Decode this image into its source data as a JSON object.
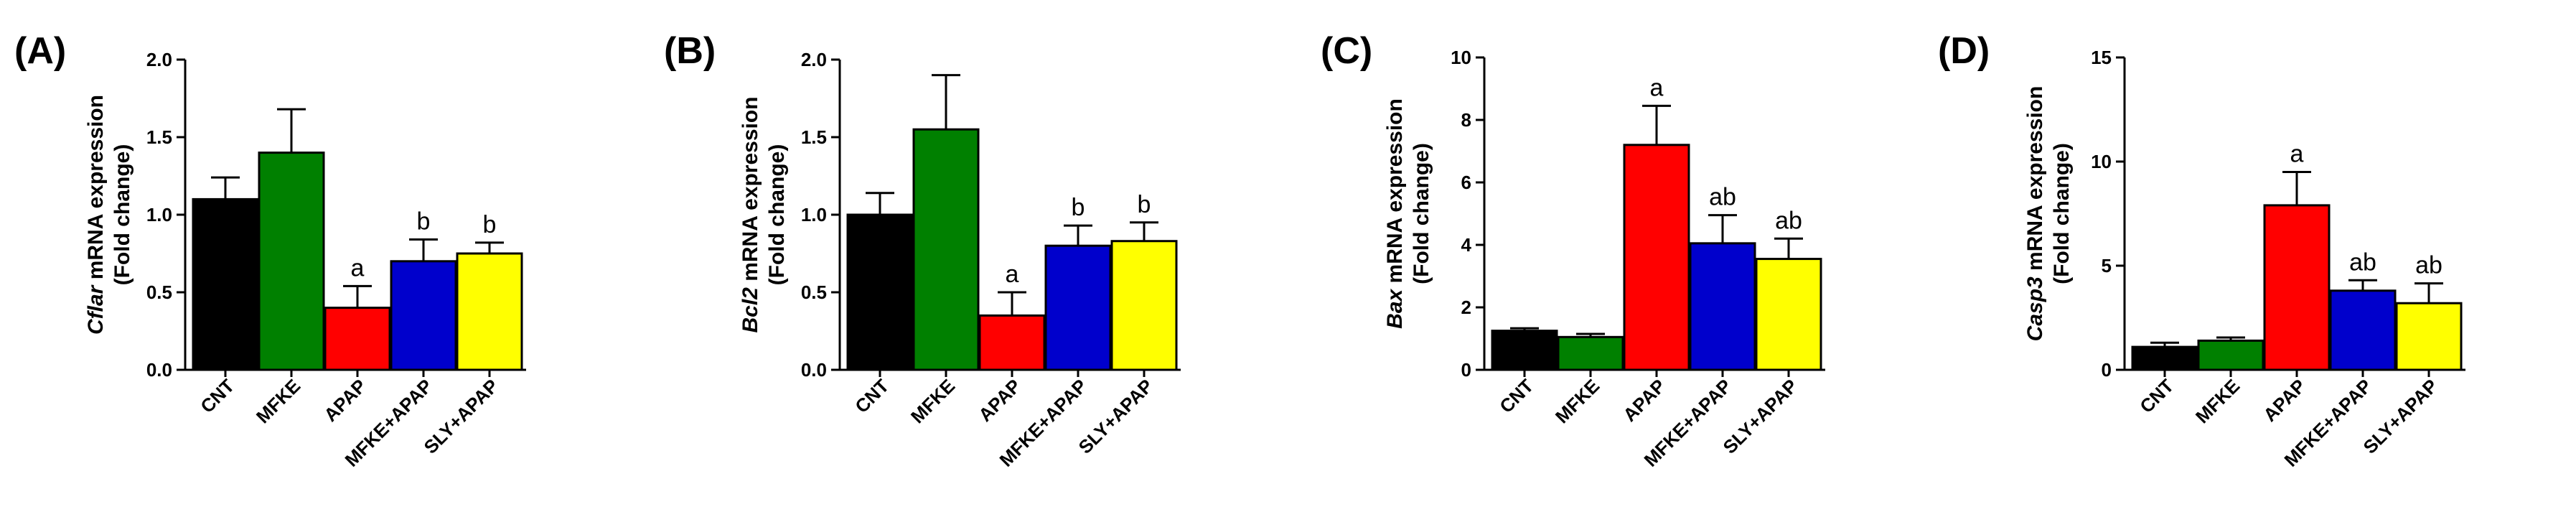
{
  "colors": {
    "CNT": "#000000",
    "MFKE": "#008000",
    "APAP": "#ff0000",
    "MFKE+APAP": "#0000cc",
    "SLY+APAP": "#ffff00"
  },
  "chart_data": [
    {
      "type": "bar",
      "panel_label": "(A)",
      "ylabel_gene": "Cflar",
      "ylabel_rest": " mRNA expression",
      "ylabel_line2": "(Fold change)",
      "categories": [
        "CNT",
        "MFKE",
        "APAP",
        "MFKE+APAP",
        "SLY+APAP"
      ],
      "values": [
        1.1,
        1.4,
        0.4,
        0.7,
        0.75
      ],
      "errors": [
        0.14,
        0.28,
        0.14,
        0.14,
        0.07
      ],
      "annotations": [
        "",
        "",
        "a",
        "b",
        "b"
      ],
      "ylim": [
        0,
        2.0
      ],
      "yticks": [
        "0.0",
        "0.5",
        "1.0",
        "1.5",
        "2.0"
      ]
    },
    {
      "type": "bar",
      "panel_label": "(B)",
      "ylabel_gene": "Bcl2",
      "ylabel_rest": " mRNA expression",
      "ylabel_line2": "(Fold change)",
      "categories": [
        "CNT",
        "MFKE",
        "APAP",
        "MFKE+APAP",
        "SLY+APAP"
      ],
      "values": [
        1.0,
        1.55,
        0.35,
        0.8,
        0.83
      ],
      "errors": [
        0.14,
        0.35,
        0.15,
        0.13,
        0.12
      ],
      "annotations": [
        "",
        "",
        "a",
        "b",
        "b"
      ],
      "ylim": [
        0,
        2.0
      ],
      "yticks": [
        "0.0",
        "0.5",
        "1.0",
        "1.5",
        "2.0"
      ]
    },
    {
      "type": "bar",
      "panel_label": "(C)",
      "ylabel_gene": "Bax",
      "ylabel_rest": " mRNA expression",
      "ylabel_line2": "(Fold change)",
      "categories": [
        "CNT",
        "MFKE",
        "APAP",
        "MFKE+APAP",
        "SLY+APAP"
      ],
      "values": [
        1.25,
        1.05,
        7.2,
        4.05,
        3.55
      ],
      "errors": [
        0.08,
        0.1,
        1.25,
        0.9,
        0.65
      ],
      "annotations": [
        "",
        "",
        "a",
        "ab",
        "ab"
      ],
      "ylim": [
        0,
        10
      ],
      "yticks": [
        "0",
        "2",
        "4",
        "6",
        "8",
        "10"
      ]
    },
    {
      "type": "bar",
      "panel_label": "(D)",
      "ylabel_gene": "Casp3",
      "ylabel_rest": " mRNA expression",
      "ylabel_line2": "(Fold change)",
      "categories": [
        "CNT",
        "MFKE",
        "APAP",
        "MFKE+APAP",
        "SLY+APAP"
      ],
      "values": [
        1.1,
        1.4,
        7.9,
        3.8,
        3.2
      ],
      "errors": [
        0.2,
        0.15,
        1.6,
        0.5,
        0.95
      ],
      "annotations": [
        "",
        "",
        "a",
        "ab",
        "ab"
      ],
      "ylim": [
        0,
        15
      ],
      "yticks": [
        "0",
        "5",
        "10",
        "15"
      ]
    }
  ]
}
